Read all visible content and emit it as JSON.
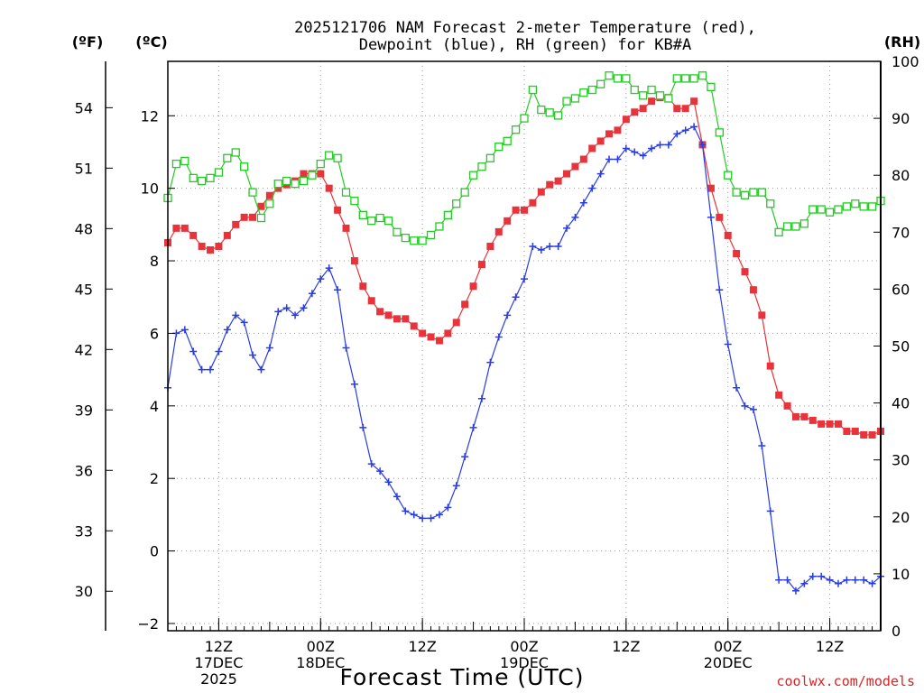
{
  "header": {
    "title_line1": "2025121706 NAM Forecast 2-meter Temperature (red),",
    "title_line2": "Dewpoint (blue), RH (green) for KB#A",
    "unit_f": "(ºF)",
    "unit_c": "(ºC)",
    "unit_rh": "(RH)"
  },
  "footer": {
    "xlabel": "Forecast Time (UTC)",
    "credit": "coolwx.com/models"
  },
  "colors": {
    "temperature": "#e8333a",
    "dewpoint": "#2a3de0",
    "rh": "#22cc22"
  },
  "chart_data": {
    "type": "line",
    "title": "2025121706 NAM Forecast 2-meter Temperature (red), Dewpoint (blue), RH (green) for KB#A",
    "xlabel": "Forecast Time (UTC)",
    "x_unit": "forecast hour from 2025-12-17 06Z",
    "xlim": [
      0,
      84
    ],
    "y_left_c": {
      "label": "(ºC)",
      "range": [
        -2.2,
        13.5
      ],
      "ticks": [
        -2,
        0,
        2,
        4,
        6,
        8,
        10,
        12
      ]
    },
    "y_left_f": {
      "label": "(ºF)",
      "range": [
        28.04,
        56.3
      ],
      "ticks": [
        30,
        33,
        36,
        39,
        42,
        45,
        48,
        51,
        54
      ]
    },
    "y_right_rh": {
      "label": "(RH)",
      "range": [
        0,
        100
      ],
      "ticks": [
        0,
        10,
        20,
        30,
        40,
        50,
        60,
        70,
        80,
        90,
        100
      ]
    },
    "x_ticks": [
      {
        "x": 6,
        "lines": [
          "12Z",
          "17DEC",
          "2025"
        ]
      },
      {
        "x": 18,
        "lines": [
          "00Z",
          "18DEC"
        ]
      },
      {
        "x": 30,
        "lines": [
          "12Z"
        ]
      },
      {
        "x": 42,
        "lines": [
          "00Z",
          "19DEC"
        ]
      },
      {
        "x": 54,
        "lines": [
          "12Z"
        ]
      },
      {
        "x": 66,
        "lines": [
          "00Z",
          "20DEC"
        ]
      },
      {
        "x": 78,
        "lines": [
          "12Z"
        ]
      }
    ],
    "grid": true,
    "series": [
      {
        "name": "2-meter Temperature",
        "axis": "C",
        "marker": "filled-square",
        "x": [
          0,
          1,
          2,
          3,
          4,
          5,
          6,
          7,
          8,
          9,
          10,
          11,
          12,
          13,
          14,
          15,
          16,
          17,
          18,
          19,
          20,
          21,
          22,
          23,
          24,
          25,
          26,
          27,
          28,
          29,
          30,
          31,
          32,
          33,
          34,
          35,
          36,
          37,
          38,
          39,
          40,
          41,
          42,
          43,
          44,
          45,
          46,
          47,
          48,
          49,
          50,
          51,
          52,
          53,
          54,
          55,
          56,
          57,
          58,
          59,
          60,
          61,
          62,
          63,
          64,
          65,
          66,
          67,
          68,
          69,
          70,
          71,
          72,
          73,
          74,
          75,
          76,
          77,
          78,
          79,
          80,
          81,
          82,
          83,
          84
        ],
        "values": [
          8.5,
          8.9,
          8.9,
          8.7,
          8.4,
          8.3,
          8.4,
          8.7,
          9.0,
          9.2,
          9.2,
          9.5,
          9.8,
          10.0,
          10.1,
          10.2,
          10.4,
          10.4,
          10.4,
          10.0,
          9.4,
          8.9,
          8.0,
          7.3,
          6.9,
          6.6,
          6.5,
          6.4,
          6.4,
          6.2,
          6.0,
          5.9,
          5.8,
          6.0,
          6.3,
          6.8,
          7.3,
          7.9,
          8.4,
          8.8,
          9.1,
          9.4,
          9.4,
          9.6,
          9.9,
          10.1,
          10.2,
          10.4,
          10.6,
          10.8,
          11.1,
          11.3,
          11.5,
          11.6,
          11.9,
          12.1,
          12.2,
          12.4,
          12.5,
          12.5,
          12.2,
          12.2,
          12.4,
          11.2,
          10.0,
          9.2,
          8.7,
          8.2,
          7.7,
          7.2,
          6.5,
          5.1,
          4.3,
          4.0,
          3.7,
          3.7,
          3.6,
          3.5,
          3.5,
          3.5,
          3.3,
          3.3,
          3.2,
          3.2,
          3.3
        ]
      },
      {
        "name": "Dewpoint",
        "axis": "C",
        "marker": "plus",
        "x": [
          0,
          1,
          2,
          3,
          4,
          5,
          6,
          7,
          8,
          9,
          10,
          11,
          12,
          13,
          14,
          15,
          16,
          17,
          18,
          19,
          20,
          21,
          22,
          23,
          24,
          25,
          26,
          27,
          28,
          29,
          30,
          31,
          32,
          33,
          34,
          35,
          36,
          37,
          38,
          39,
          40,
          41,
          42,
          43,
          44,
          45,
          46,
          47,
          48,
          49,
          50,
          51,
          52,
          53,
          54,
          55,
          56,
          57,
          58,
          59,
          60,
          61,
          62,
          63,
          64,
          65,
          66,
          67,
          68,
          69,
          70,
          71,
          72,
          73,
          74,
          75,
          76,
          77,
          78,
          79,
          80,
          81,
          82,
          83,
          84
        ],
        "values": [
          4.5,
          6.0,
          6.1,
          5.5,
          5.0,
          5.0,
          5.5,
          6.1,
          6.5,
          6.3,
          5.4,
          5.0,
          5.6,
          6.6,
          6.7,
          6.5,
          6.7,
          7.1,
          7.5,
          7.8,
          7.2,
          5.6,
          4.6,
          3.4,
          2.4,
          2.2,
          1.9,
          1.5,
          1.1,
          1.0,
          0.9,
          0.9,
          1.0,
          1.2,
          1.8,
          2.6,
          3.4,
          4.2,
          5.2,
          5.9,
          6.5,
          7.0,
          7.5,
          8.4,
          8.3,
          8.4,
          8.4,
          8.9,
          9.2,
          9.6,
          10.0,
          10.4,
          10.8,
          10.8,
          11.1,
          11.0,
          10.9,
          11.1,
          11.2,
          11.2,
          11.5,
          11.6,
          11.7,
          11.2,
          9.2,
          7.2,
          5.7,
          4.5,
          4.0,
          3.9,
          2.9,
          1.1,
          -0.8,
          -0.8,
          -1.1,
          -0.9,
          -0.7,
          -0.7,
          -0.8,
          -0.9,
          -0.8,
          -0.8,
          -0.8,
          -0.9,
          -0.7
        ]
      },
      {
        "name": "Relative Humidity",
        "axis": "RH",
        "marker": "open-square",
        "x": [
          0,
          1,
          2,
          3,
          4,
          5,
          6,
          7,
          8,
          9,
          10,
          11,
          12,
          13,
          14,
          15,
          16,
          17,
          18,
          19,
          20,
          21,
          22,
          23,
          24,
          25,
          26,
          27,
          28,
          29,
          30,
          31,
          32,
          33,
          34,
          35,
          36,
          37,
          38,
          39,
          40,
          41,
          42,
          43,
          44,
          45,
          46,
          47,
          48,
          49,
          50,
          51,
          52,
          53,
          54,
          55,
          56,
          57,
          58,
          59,
          60,
          61,
          62,
          63,
          64,
          65,
          66,
          67,
          68,
          69,
          70,
          71,
          72,
          73,
          74,
          75,
          76,
          77,
          78,
          79,
          80,
          81,
          82,
          83,
          84
        ],
        "values": [
          76,
          82,
          82.5,
          79.5,
          79,
          79.5,
          80.5,
          83,
          84,
          81.5,
          77,
          72.5,
          75,
          78.5,
          79,
          78.5,
          79,
          80,
          82,
          83.5,
          83,
          77,
          75.5,
          73,
          72,
          72.5,
          72,
          70,
          69,
          68.5,
          68.5,
          69.5,
          71,
          73,
          75,
          77,
          80,
          81.5,
          83,
          85,
          86,
          88,
          90,
          95,
          91.5,
          91,
          90.5,
          93,
          93.5,
          94.5,
          95,
          96,
          97.5,
          97,
          97,
          95,
          94,
          95,
          94,
          93.5,
          97,
          97,
          97,
          97.5,
          95.5,
          87.5,
          80,
          77,
          76.5,
          77,
          77,
          75,
          70,
          71,
          71,
          71.5,
          74,
          74,
          73.5,
          74,
          74.5,
          75,
          74.5,
          74.5,
          75.5
        ]
      }
    ]
  }
}
